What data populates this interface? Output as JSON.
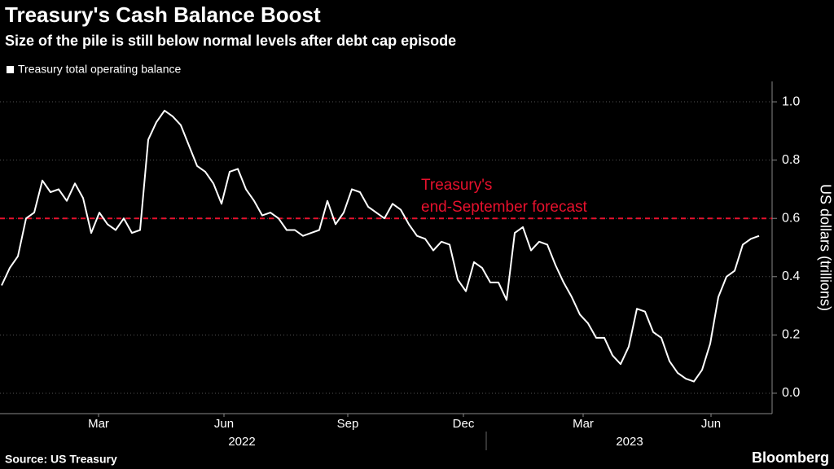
{
  "chart_data": {
    "type": "line",
    "title": "Treasury's Cash Balance Boost",
    "subtitle": "Size of the pile is still below normal levels after debt cap episode",
    "source": "Source: US Treasury",
    "brand": "Bloomberg",
    "y_label": "US dollars (trillions)",
    "grid": true,
    "legend": "top-left",
    "series": [
      {
        "name": "Treasury total operating balance",
        "color": "#ffffff",
        "values": [
          0.37,
          0.43,
          0.47,
          0.6,
          0.62,
          0.73,
          0.69,
          0.7,
          0.66,
          0.72,
          0.67,
          0.55,
          0.62,
          0.58,
          0.56,
          0.6,
          0.55,
          0.56,
          0.87,
          0.93,
          0.97,
          0.95,
          0.92,
          0.85,
          0.78,
          0.76,
          0.72,
          0.65,
          0.76,
          0.77,
          0.7,
          0.66,
          0.61,
          0.62,
          0.6,
          0.56,
          0.56,
          0.54,
          0.55,
          0.56,
          0.66,
          0.58,
          0.62,
          0.7,
          0.69,
          0.64,
          0.62,
          0.6,
          0.65,
          0.63,
          0.58,
          0.54,
          0.53,
          0.49,
          0.52,
          0.51,
          0.39,
          0.35,
          0.45,
          0.43,
          0.38,
          0.38,
          0.32,
          0.55,
          0.57,
          0.49,
          0.52,
          0.51,
          0.44,
          0.38,
          0.33,
          0.27,
          0.24,
          0.19,
          0.19,
          0.13,
          0.1,
          0.16,
          0.29,
          0.28,
          0.21,
          0.19,
          0.11,
          0.07,
          0.05,
          0.04,
          0.08,
          0.17,
          0.33,
          0.4,
          0.42,
          0.51,
          0.53,
          0.54
        ]
      }
    ],
    "hline": {
      "value": 0.6,
      "color": "#e8112d",
      "text": [
        "Treasury's",
        "end-September forecast"
      ]
    },
    "xlim": [
      -0.2,
      94.3
    ],
    "xticks": [
      {
        "value": 11.9,
        "label": "Mar"
      },
      {
        "value": 27.3,
        "label": "Jun"
      },
      {
        "value": 42.5,
        "label": "Sep"
      },
      {
        "value": 56.7,
        "label": "Dec"
      },
      {
        "value": 71.4,
        "label": "Mar"
      },
      {
        "value": 87.1,
        "label": "Jun"
      }
    ],
    "year_ticks": [
      {
        "value": 29.5,
        "label": "2022"
      },
      {
        "value": 77.1,
        "label": "2023"
      }
    ],
    "ylim": [
      -0.07,
      1.07
    ],
    "yticks": [
      {
        "value": 0,
        "label": "0.0"
      },
      0.2,
      0.4,
      0.6,
      0.8,
      {
        "value": 1,
        "label": "1.0"
      }
    ]
  }
}
